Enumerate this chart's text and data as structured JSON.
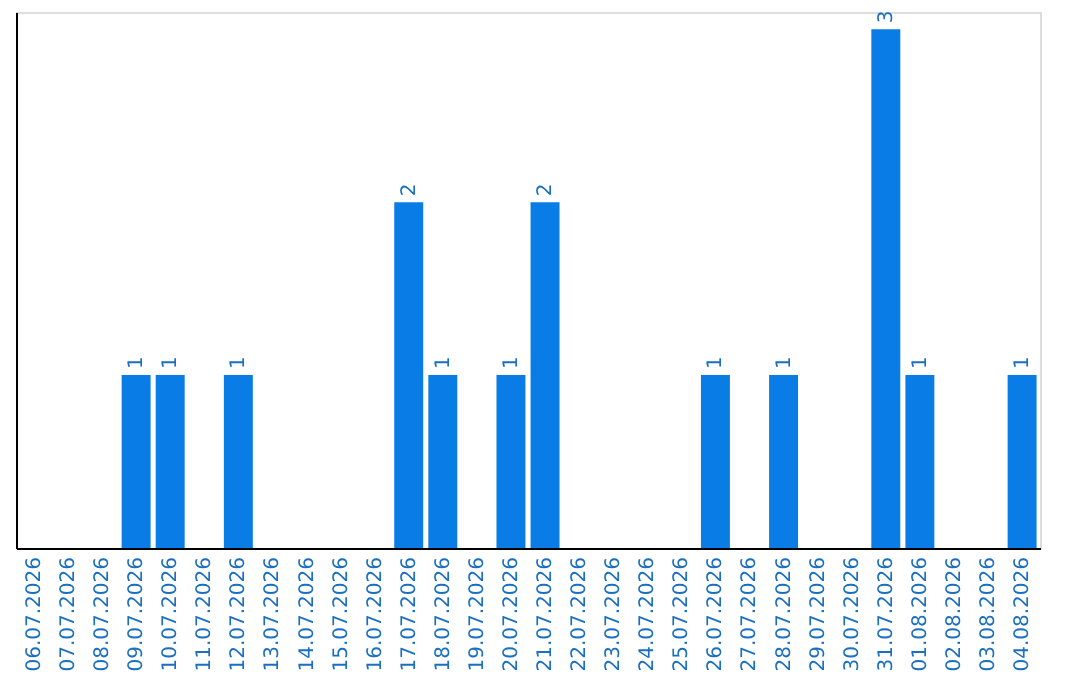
{
  "chart_data": {
    "type": "bar",
    "categories": [
      "06.07.2026",
      "07.07.2026",
      "08.07.2026",
      "09.07.2026",
      "10.07.2026",
      "11.07.2026",
      "12.07.2026",
      "13.07.2026",
      "14.07.2026",
      "15.07.2026",
      "16.07.2026",
      "17.07.2026",
      "18.07.2026",
      "19.07.2026",
      "20.07.2026",
      "21.07.2026",
      "22.07.2026",
      "23.07.2026",
      "24.07.2026",
      "25.07.2026",
      "26.07.2026",
      "27.07.2026",
      "28.07.2026",
      "29.07.2026",
      "30.07.2026",
      "31.07.2026",
      "01.08.2026",
      "02.08.2026",
      "03.08.2026",
      "04.08.2026"
    ],
    "values": [
      0,
      0,
      0,
      1,
      1,
      0,
      1,
      0,
      0,
      0,
      0,
      2,
      1,
      0,
      1,
      2,
      0,
      0,
      0,
      0,
      1,
      0,
      1,
      0,
      0,
      3,
      1,
      0,
      0,
      1
    ],
    "value_labels": [
      null,
      null,
      null,
      "1",
      "1",
      null,
      "1",
      null,
      null,
      null,
      null,
      "2",
      "1",
      null,
      "1",
      "2",
      null,
      null,
      null,
      null,
      "1",
      null,
      "1",
      null,
      null,
      "3",
      "1",
      null,
      null,
      "1"
    ],
    "color": "#0a7ce6",
    "ylim": [
      0,
      3.1
    ],
    "tick_labels": "x",
    "grid": false
  }
}
